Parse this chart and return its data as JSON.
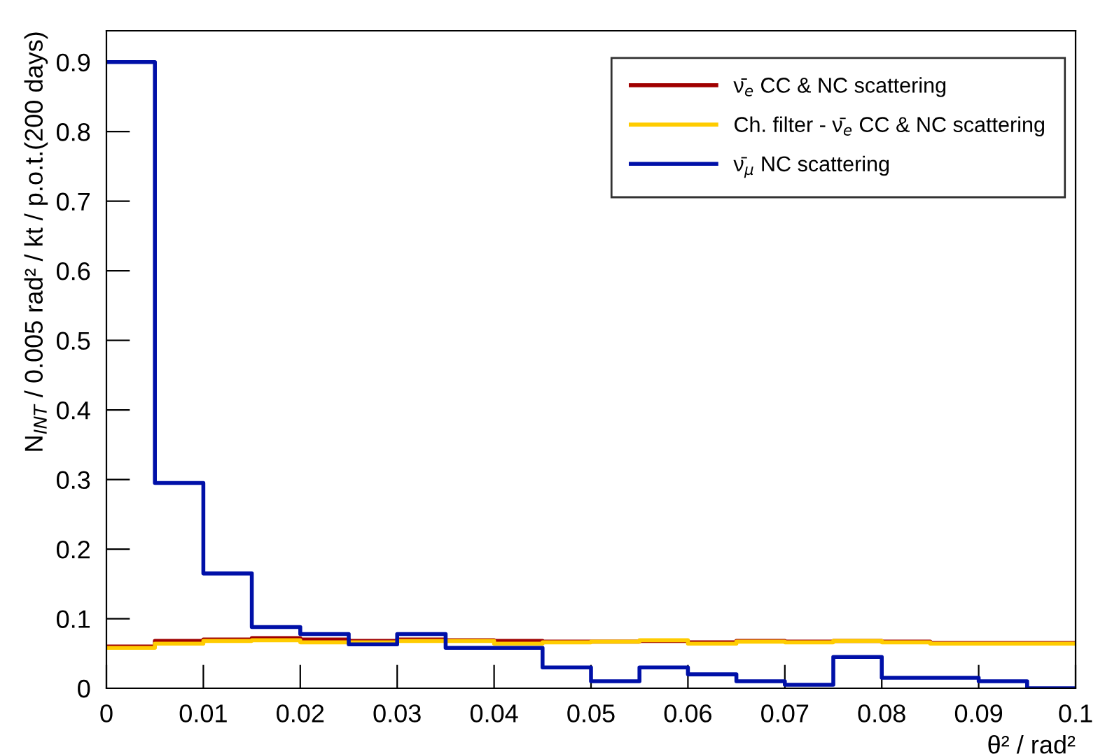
{
  "chart_data": {
    "type": "step",
    "xlabel": "θ² / rad²",
    "ylabel": "N$_{INT}$ / 0.005 rad² / kt / p.o.t.(200 days)",
    "x": [
      0,
      0.005,
      0.01,
      0.015,
      0.02,
      0.025,
      0.03,
      0.035,
      0.04,
      0.045,
      0.05,
      0.055,
      0.06,
      0.065,
      0.07,
      0.075,
      0.08,
      0.085,
      0.09,
      0.095,
      0.1
    ],
    "series": [
      {
        "name": "ν̄$_{e}$ CC & NC scattering",
        "color": "#a00000",
        "values": [
          0.06,
          0.068,
          0.07,
          0.072,
          0.07,
          0.068,
          0.07,
          0.069,
          0.068,
          0.067,
          0.067,
          0.068,
          0.066,
          0.068,
          0.067,
          0.068,
          0.067,
          0.065,
          0.065,
          0.065,
          0.065
        ]
      },
      {
        "name": "Ch. filter - ν̄$_{e}$ CC & NC scattering",
        "color": "#ffcc00",
        "values": [
          0.058,
          0.064,
          0.068,
          0.069,
          0.066,
          0.066,
          0.068,
          0.068,
          0.064,
          0.066,
          0.067,
          0.069,
          0.064,
          0.067,
          0.066,
          0.068,
          0.066,
          0.064,
          0.064,
          0.064,
          0.064
        ]
      },
      {
        "name": "ν̄$_{μ}$ NC scattering",
        "color": "#0010a8",
        "values": [
          0.9,
          0.295,
          0.165,
          0.088,
          0.078,
          0.063,
          0.078,
          0.058,
          0.058,
          0.03,
          0.01,
          0.03,
          0.02,
          0.01,
          0.005,
          0.045,
          0.015,
          0.015,
          0.01,
          0.0,
          0.0
        ]
      }
    ],
    "xlim": [
      0,
      0.1
    ],
    "ylim": [
      0,
      0.945
    ],
    "xticks": [
      0,
      0.01,
      0.02,
      0.03,
      0.04,
      0.05,
      0.06,
      0.07,
      0.08,
      0.09,
      0.1
    ],
    "yticks": [
      0,
      0.1,
      0.2,
      0.3,
      0.4,
      0.5,
      0.6,
      0.7,
      0.8,
      0.9
    ],
    "grid": false,
    "legend": "top right"
  }
}
